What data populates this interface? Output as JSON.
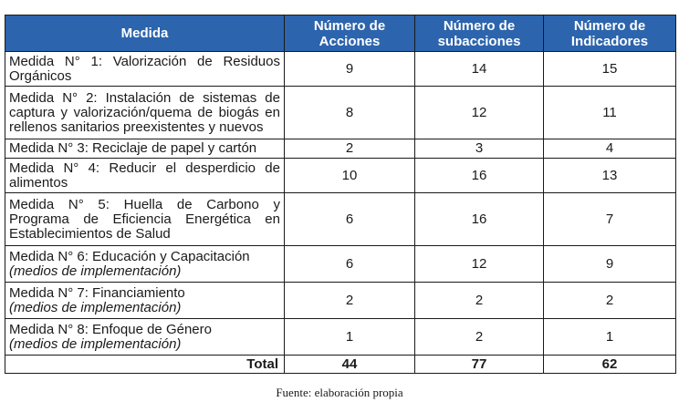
{
  "headers": [
    "Medida",
    "Número de Acciones",
    "Número de subacciones",
    "Número de Indicadores"
  ],
  "rows": [
    {
      "label": "Medida N° 1: Valorización de Residuos Orgánicos",
      "sub": "",
      "acciones": "9",
      "subacciones": "14",
      "indicadores": "15"
    },
    {
      "label": "Medida N° 2: Instalación de sistemas de captura y valorización/quema de biogás en rellenos sanitarios preexistentes y nuevos",
      "sub": "",
      "acciones": "8",
      "subacciones": "12",
      "indicadores": "11"
    },
    {
      "label": "Medida N° 3: Reciclaje de papel y cartón",
      "sub": "",
      "acciones": "2",
      "subacciones": "3",
      "indicadores": "4"
    },
    {
      "label": "Medida N° 4: Reducir el desperdicio de alimentos",
      "sub": "",
      "acciones": "10",
      "subacciones": "16",
      "indicadores": "13"
    },
    {
      "label": "Medida N° 5: Huella de Carbono y Programa de Eficiencia Energética en Establecimientos de Salud",
      "sub": "",
      "acciones": "6",
      "subacciones": "16",
      "indicadores": "7"
    },
    {
      "label": "Medida N° 6: Educación y Capacitación",
      "sub": "(medios de implementación)",
      "acciones": "6",
      "subacciones": "12",
      "indicadores": "9"
    },
    {
      "label": "Medida N° 7: Financiamiento",
      "sub": "(medios de implementación)",
      "acciones": "2",
      "subacciones": "2",
      "indicadores": "2"
    },
    {
      "label": "Medida N° 8: Enfoque de Género",
      "sub": "(medios de implementación)",
      "acciones": "1",
      "subacciones": "2",
      "indicadores": "1"
    }
  ],
  "total": {
    "label": "Total",
    "acciones": "44",
    "subacciones": "77",
    "indicadores": "62"
  },
  "source": "Fuente: elaboración propia",
  "colors": {
    "header_bg": "#2c64ad",
    "header_text": "#ffffff",
    "border": "#1a1a1a"
  }
}
